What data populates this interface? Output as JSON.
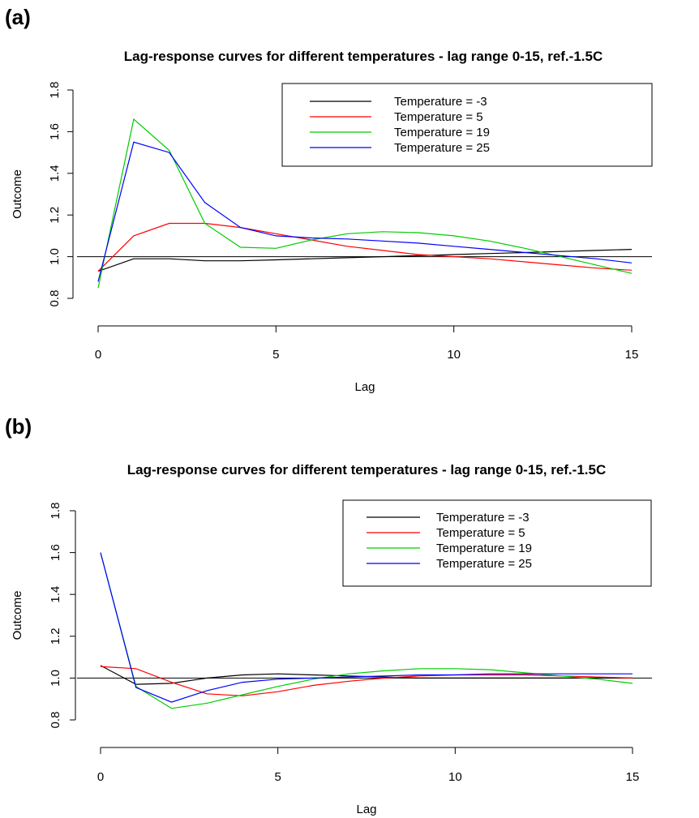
{
  "chart_data": [
    {
      "panel_label": "(a)",
      "type": "line",
      "title": "Lag-response curves for different temperatures - lag range 0-15, ref.-1.5C",
      "xlabel": "Lag",
      "ylabel": "Outcome",
      "xlim": [
        0,
        15
      ],
      "ylim": [
        0.8,
        1.8
      ],
      "xticks": [
        0,
        5,
        10,
        15
      ],
      "yticks": [
        0.8,
        1.0,
        1.2,
        1.4,
        1.6,
        1.8
      ],
      "xtick_labels": [
        "0",
        "5",
        "10",
        "15"
      ],
      "ytick_labels": [
        "0.8",
        "1.0",
        "1.2",
        "1.4",
        "1.6",
        "1.8"
      ],
      "reference_line": 1.0,
      "legend_position": "top-right",
      "x": [
        0,
        1,
        2,
        3,
        4,
        5,
        6,
        7,
        8,
        9,
        10,
        11,
        12,
        13,
        14,
        15
      ],
      "series": [
        {
          "name": "Temperature = -3",
          "color": "#000000",
          "values": [
            0.93,
            0.99,
            0.99,
            0.98,
            0.98,
            0.985,
            0.99,
            0.995,
            1.0,
            1.005,
            1.01,
            1.015,
            1.02,
            1.025,
            1.03,
            1.035
          ]
        },
        {
          "name": "Temperature = 5",
          "color": "#ff0000",
          "values": [
            0.93,
            1.1,
            1.16,
            1.16,
            1.14,
            1.11,
            1.08,
            1.05,
            1.03,
            1.01,
            1.0,
            0.99,
            0.975,
            0.96,
            0.945,
            0.935
          ]
        },
        {
          "name": "Temperature = 19",
          "color": "#00cc00",
          "values": [
            0.85,
            1.66,
            1.51,
            1.16,
            1.045,
            1.04,
            1.08,
            1.11,
            1.12,
            1.115,
            1.1,
            1.075,
            1.04,
            1.0,
            0.96,
            0.92
          ]
        },
        {
          "name": "Temperature = 25",
          "color": "#0000ff",
          "values": [
            0.88,
            1.55,
            1.5,
            1.26,
            1.14,
            1.1,
            1.09,
            1.085,
            1.075,
            1.065,
            1.05,
            1.035,
            1.02,
            1.005,
            0.99,
            0.97
          ]
        }
      ]
    },
    {
      "panel_label": "(b)",
      "type": "line",
      "title": "Lag-response curves for different temperatures - lag range 0-15, ref.-1.5C",
      "xlabel": "Lag",
      "ylabel": "Outcome",
      "xlim": [
        0,
        15
      ],
      "ylim": [
        0.8,
        1.8
      ],
      "xticks": [
        0,
        5,
        10,
        15
      ],
      "yticks": [
        0.8,
        1.0,
        1.2,
        1.4,
        1.6,
        1.8
      ],
      "xtick_labels": [
        "0",
        "5",
        "10",
        "15"
      ],
      "ytick_labels": [
        "0.8",
        "1.0",
        "1.2",
        "1.4",
        "1.6",
        "1.8"
      ],
      "reference_line": 1.0,
      "legend_position": "top-right",
      "x": [
        0,
        1,
        2,
        3,
        4,
        5,
        6,
        7,
        8,
        9,
        10,
        11,
        12,
        13,
        14,
        15
      ],
      "series": [
        {
          "name": "Temperature = -3",
          "color": "#000000",
          "values": [
            1.06,
            0.97,
            0.975,
            1.0,
            1.015,
            1.02,
            1.015,
            1.01,
            1.005,
            1.0,
            1.0,
            1.0,
            1.0,
            1.0,
            1.0,
            1.0
          ]
        },
        {
          "name": "Temperature = 5",
          "color": "#ff0000",
          "values": [
            1.055,
            1.045,
            0.98,
            0.925,
            0.915,
            0.935,
            0.965,
            0.985,
            1.0,
            1.01,
            1.015,
            1.015,
            1.015,
            1.01,
            1.005,
            1.0
          ]
        },
        {
          "name": "Temperature = 19",
          "color": "#00cc00",
          "values": [
            1.6,
            0.96,
            0.855,
            0.88,
            0.92,
            0.96,
            0.995,
            1.02,
            1.035,
            1.045,
            1.045,
            1.04,
            1.025,
            1.01,
            0.995,
            0.975
          ]
        },
        {
          "name": "Temperature = 25",
          "color": "#0000ff",
          "values": [
            1.6,
            0.955,
            0.885,
            0.94,
            0.98,
            0.995,
            1.0,
            1.005,
            1.01,
            1.015,
            1.015,
            1.02,
            1.02,
            1.02,
            1.02,
            1.02
          ]
        }
      ]
    }
  ]
}
